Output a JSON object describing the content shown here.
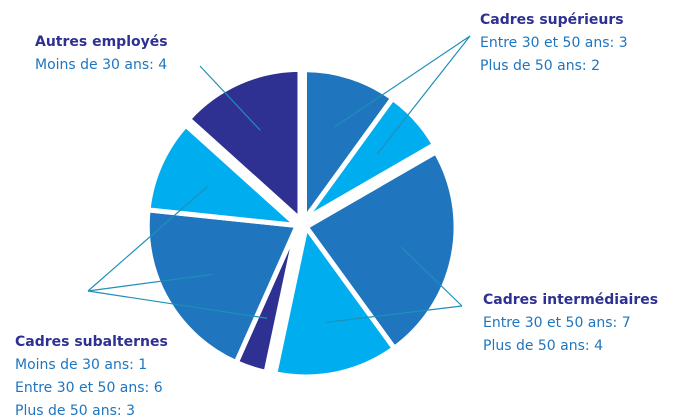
{
  "chart_data": {
    "type": "pie",
    "groups": [
      {
        "name": "Cadres supérieurs",
        "value_labels": [
          "Entre 30 et 50 ans: 3",
          "Plus de 50 ans: 2"
        ],
        "values": [
          3,
          2
        ],
        "colors": [
          "#1f75be",
          "#00aeef"
        ]
      },
      {
        "name": "Cadres intermédiaires",
        "value_labels": [
          "Entre 30 et 50 ans: 7",
          "Plus de 50 ans: 4"
        ],
        "values": [
          7,
          4
        ],
        "colors": [
          "#1f75be",
          "#00aeef"
        ]
      },
      {
        "name": "Cadres subalternes",
        "value_labels": [
          "Moins de 30 ans: 1",
          "Entre 30 et 50 ans: 6",
          "Plus de 50 ans: 3"
        ],
        "values": [
          1,
          6,
          3
        ],
        "colors": [
          "#2e3192",
          "#1f75be",
          "#00aeef"
        ]
      },
      {
        "name": "Autres employés",
        "value_labels": [
          "Moins de 30 ans: 4"
        ],
        "values": [
          4
        ],
        "colors": [
          "#2e3192"
        ]
      }
    ]
  }
}
